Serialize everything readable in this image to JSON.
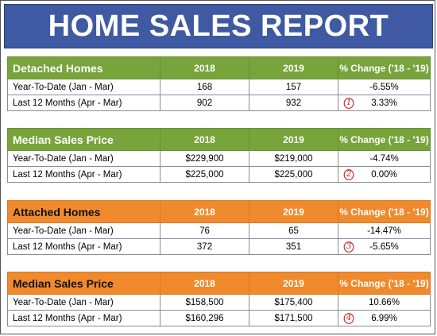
{
  "title": "HOME SALES REPORT",
  "colors": {
    "banner": "#3f5aa2",
    "green_header": "#77a43b",
    "orange_header": "#f08a2d",
    "annotation": "#c8201f"
  },
  "tables": [
    {
      "header": {
        "label": "Detached Homes",
        "y1": "2018",
        "y2": "2019",
        "change": "% Change ('18 - '19)"
      },
      "rows": [
        {
          "label": "Year-To-Date (Jan - Mar)",
          "y1": "168",
          "y2": "157",
          "change": "-6.55%"
        },
        {
          "label": "Last 12 Months (Apr - Mar)",
          "y1": "902",
          "y2": "932",
          "change": "3.33%",
          "marker": "1"
        }
      ]
    },
    {
      "header": {
        "label": "Median Sales Price",
        "y1": "2018",
        "y2": "2019",
        "change": "% Change ('18 - '19)"
      },
      "rows": [
        {
          "label": "Year-To-Date (Jan - Mar)",
          "y1": "$229,900",
          "y2": "$219,000",
          "change": "-4.74%"
        },
        {
          "label": "Last 12 Months (Apr - Mar)",
          "y1": "$225,000",
          "y2": "$225,000",
          "change": "0.00%",
          "marker": "2"
        }
      ]
    },
    {
      "header": {
        "label": "Attached Homes",
        "y1": "2018",
        "y2": "2019",
        "change": "% Change ('18 - '19)"
      },
      "rows": [
        {
          "label": "Year-To-Date (Jan - Mar)",
          "y1": "76",
          "y2": "65",
          "change": "-14.47%"
        },
        {
          "label": "Last 12 Months (Apr - Mar)",
          "y1": "372",
          "y2": "351",
          "change": "-5.65%",
          "marker": "3"
        }
      ]
    },
    {
      "header": {
        "label": "Median Sales Price",
        "y1": "2018",
        "y2": "2019",
        "change": "% Change ('18 - '19)"
      },
      "rows": [
        {
          "label": "Year-To-Date (Jan - Mar)",
          "y1": "$158,500",
          "y2": "$175,400",
          "change": "10.66%"
        },
        {
          "label": "Last 12 Months (Apr - Mar)",
          "y1": "$160,296",
          "y2": "$171,500",
          "change": "6.99%",
          "marker": "4"
        }
      ]
    }
  ]
}
